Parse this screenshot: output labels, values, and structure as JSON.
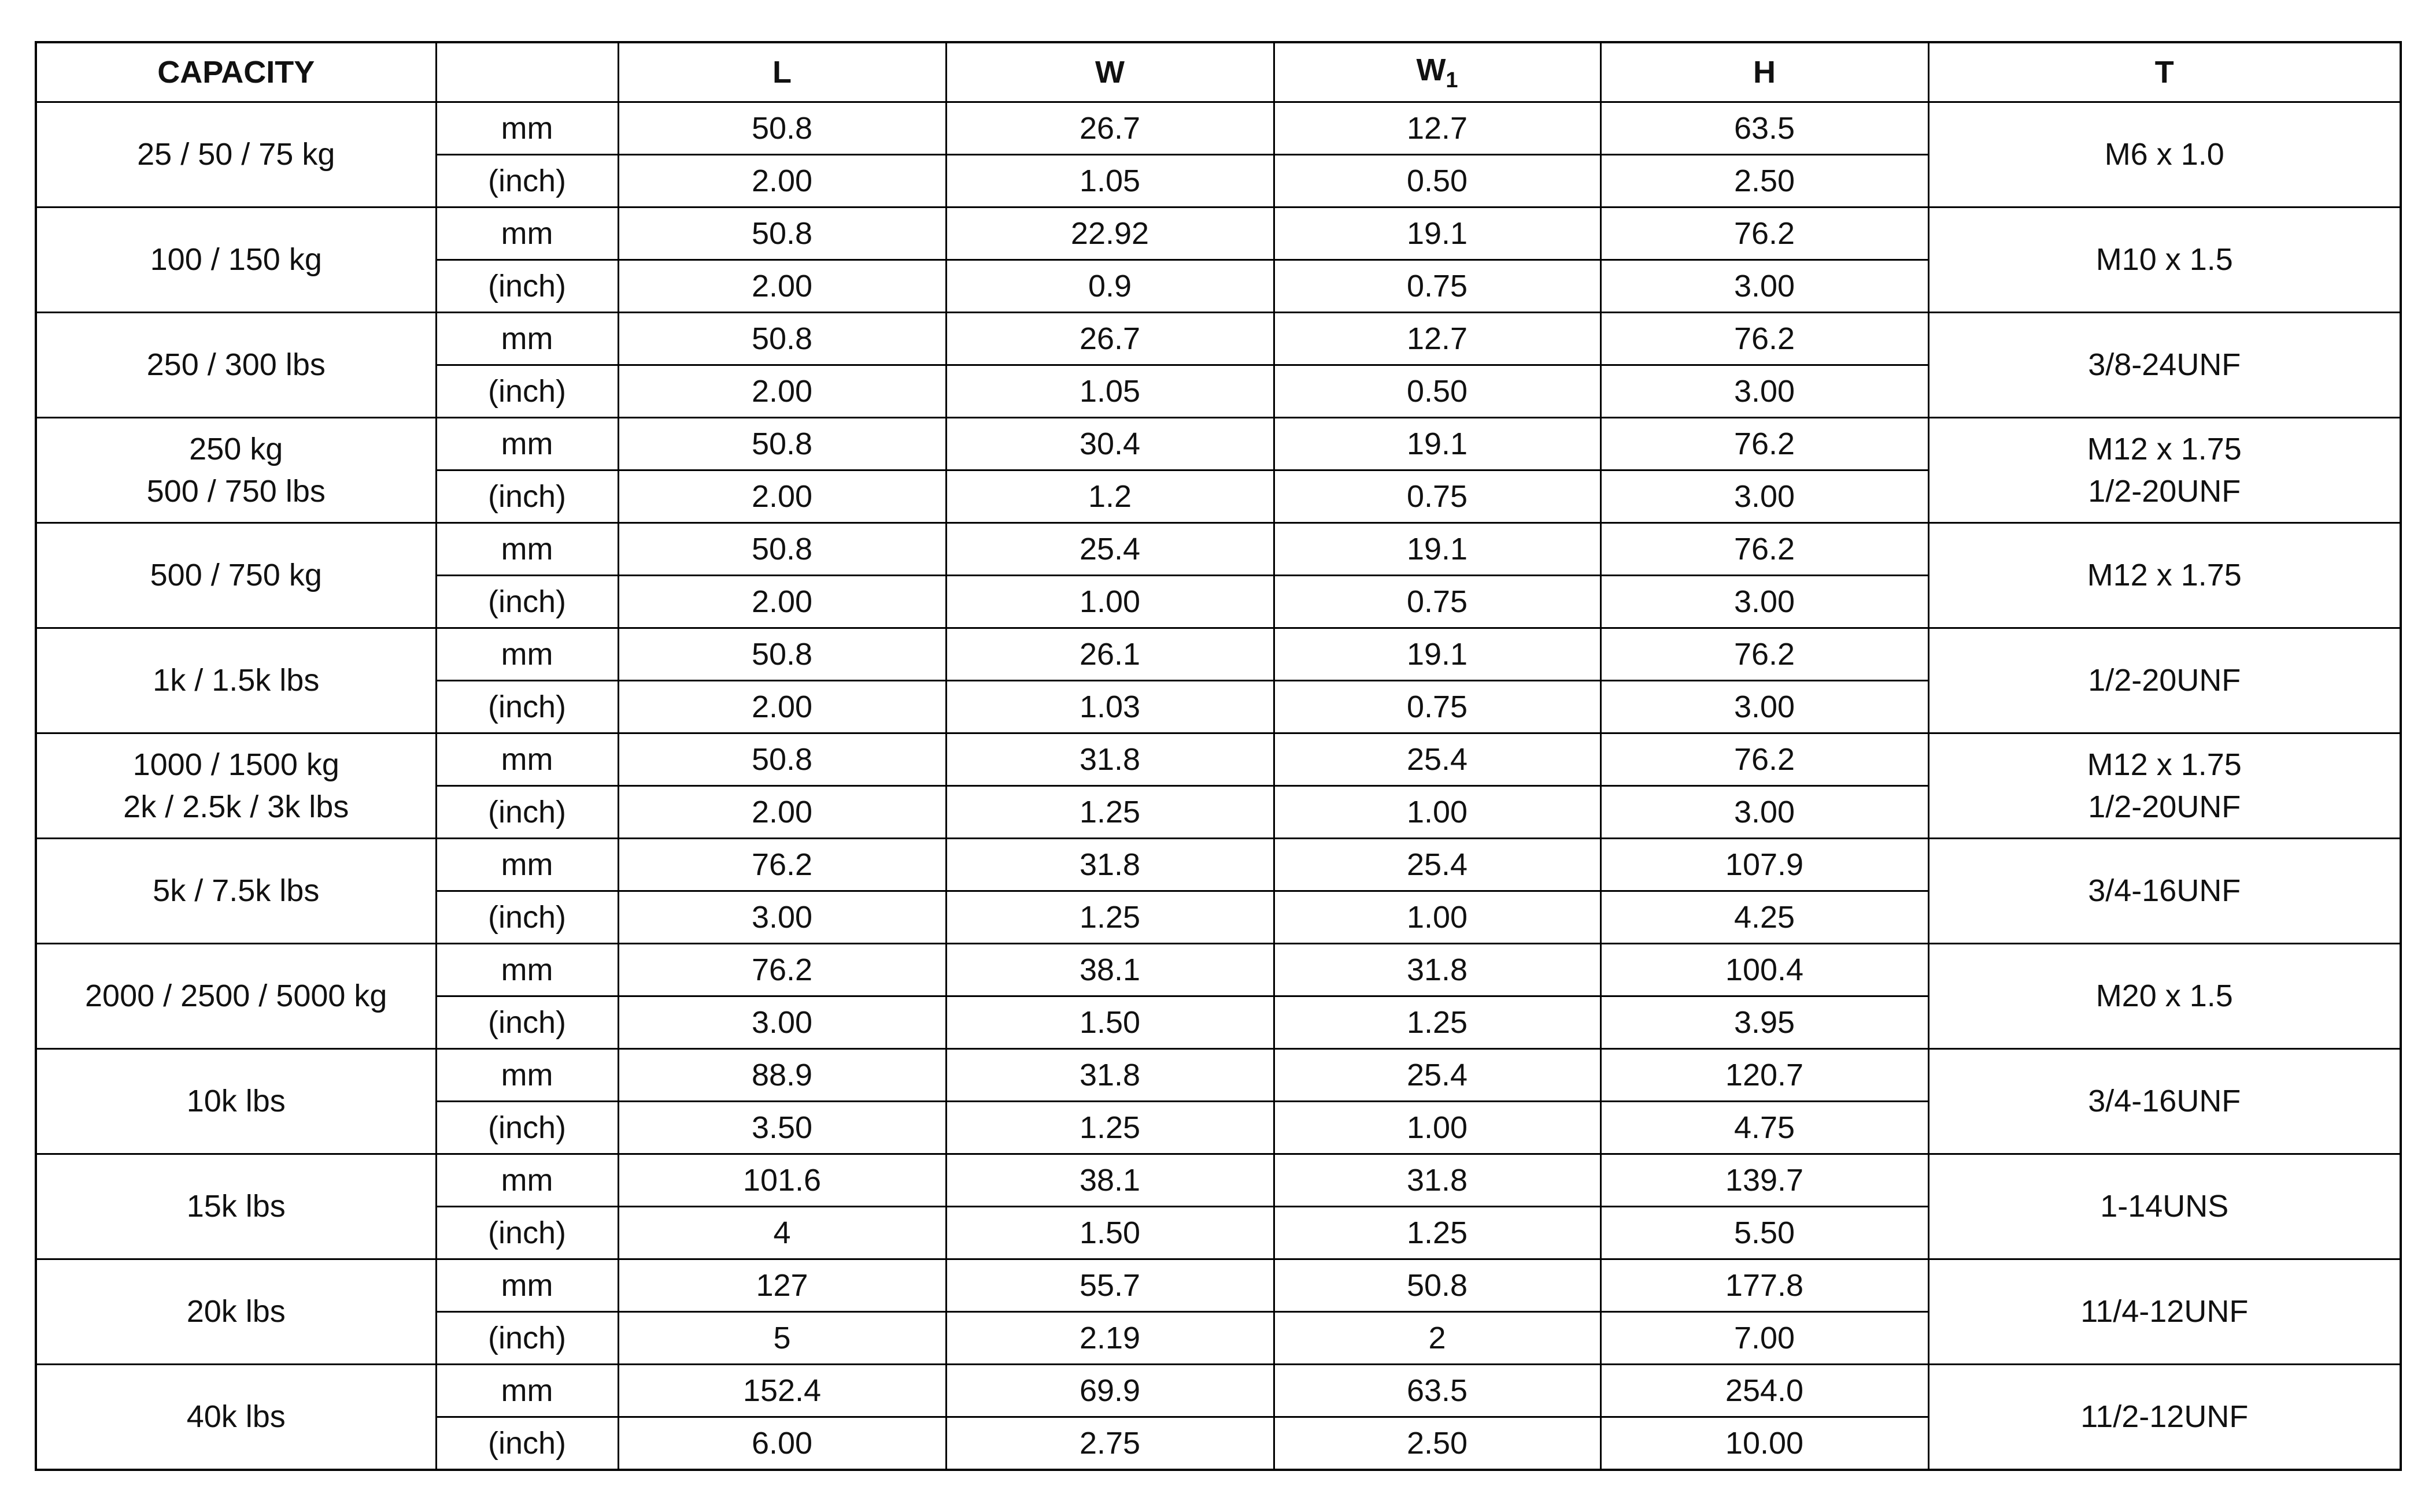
{
  "table": {
    "header": [
      {
        "label": "CAPACITY"
      },
      {
        "label": "L"
      },
      {
        "label": "W"
      },
      {
        "label": "W",
        "subscript": "1"
      },
      {
        "label": "H"
      },
      {
        "label": "T"
      }
    ],
    "units": [
      "mm",
      "(inch)"
    ],
    "rows": [
      {
        "capacity": [
          "25 / 50 / 75 kg"
        ],
        "mm": [
          "50.8",
          "26.7",
          "12.7",
          "63.5"
        ],
        "inch": [
          "2.00",
          "1.05",
          "0.50",
          "2.50"
        ],
        "thread": [
          "M6 x 1.0"
        ]
      },
      {
        "capacity": [
          "100 / 150 kg"
        ],
        "mm": [
          "50.8",
          "22.92",
          "19.1",
          "76.2"
        ],
        "inch": [
          "2.00",
          "0.9",
          "0.75",
          "3.00"
        ],
        "thread": [
          "M10 x 1.5"
        ]
      },
      {
        "capacity": [
          "250 / 300 lbs"
        ],
        "mm": [
          "50.8",
          "26.7",
          "12.7",
          "76.2"
        ],
        "inch": [
          "2.00",
          "1.05",
          "0.50",
          "3.00"
        ],
        "thread": [
          "3/8-24UNF"
        ]
      },
      {
        "capacity": [
          "250 kg",
          "500 / 750 lbs"
        ],
        "mm": [
          "50.8",
          "30.4",
          "19.1",
          "76.2"
        ],
        "inch": [
          "2.00",
          "1.2",
          "0.75",
          "3.00"
        ],
        "thread": [
          "M12 x 1.75",
          "1/2-20UNF"
        ]
      },
      {
        "capacity": [
          "500 / 750 kg"
        ],
        "mm": [
          "50.8",
          "25.4",
          "19.1",
          "76.2"
        ],
        "inch": [
          "2.00",
          "1.00",
          "0.75",
          "3.00"
        ],
        "thread": [
          "M12 x 1.75"
        ]
      },
      {
        "capacity": [
          "1k / 1.5k lbs"
        ],
        "mm": [
          "50.8",
          "26.1",
          "19.1",
          "76.2"
        ],
        "inch": [
          "2.00",
          "1.03",
          "0.75",
          "3.00"
        ],
        "thread": [
          "1/2-20UNF"
        ]
      },
      {
        "capacity": [
          "1000 / 1500 kg",
          "2k / 2.5k / 3k lbs"
        ],
        "mm": [
          "50.8",
          "31.8",
          "25.4",
          "76.2"
        ],
        "inch": [
          "2.00",
          "1.25",
          "1.00",
          "3.00"
        ],
        "thread": [
          "M12 x 1.75",
          "1/2-20UNF"
        ]
      },
      {
        "capacity": [
          "5k / 7.5k lbs"
        ],
        "mm": [
          "76.2",
          "31.8",
          "25.4",
          "107.9"
        ],
        "inch": [
          "3.00",
          "1.25",
          "1.00",
          "4.25"
        ],
        "thread": [
          "3/4-16UNF"
        ]
      },
      {
        "capacity": [
          "2000 / 2500 / 5000 kg"
        ],
        "mm": [
          "76.2",
          "38.1",
          "31.8",
          "100.4"
        ],
        "inch": [
          "3.00",
          "1.50",
          "1.25",
          "3.95"
        ],
        "thread": [
          "M20 x 1.5"
        ]
      },
      {
        "capacity": [
          "10k lbs"
        ],
        "mm": [
          "88.9",
          "31.8",
          "25.4",
          "120.7"
        ],
        "inch": [
          "3.50",
          "1.25",
          "1.00",
          "4.75"
        ],
        "thread": [
          "3/4-16UNF"
        ]
      },
      {
        "capacity": [
          "15k lbs"
        ],
        "mm": [
          "101.6",
          "38.1",
          "31.8",
          "139.7"
        ],
        "inch": [
          "4",
          "1.50",
          "1.25",
          "5.50"
        ],
        "thread": [
          "1-14UNS"
        ]
      },
      {
        "capacity": [
          "20k lbs"
        ],
        "mm": [
          "127",
          "55.7",
          "50.8",
          "177.8"
        ],
        "inch": [
          "5",
          "2.19",
          "2",
          "7.00"
        ],
        "thread": [
          "11/4-12UNF"
        ]
      },
      {
        "capacity": [
          "40k lbs"
        ],
        "mm": [
          "152.4",
          "69.9",
          "63.5",
          "254.0"
        ],
        "inch": [
          "6.00",
          "2.75",
          "2.50",
          "10.00"
        ],
        "thread": [
          "11/2-12UNF"
        ]
      }
    ]
  }
}
